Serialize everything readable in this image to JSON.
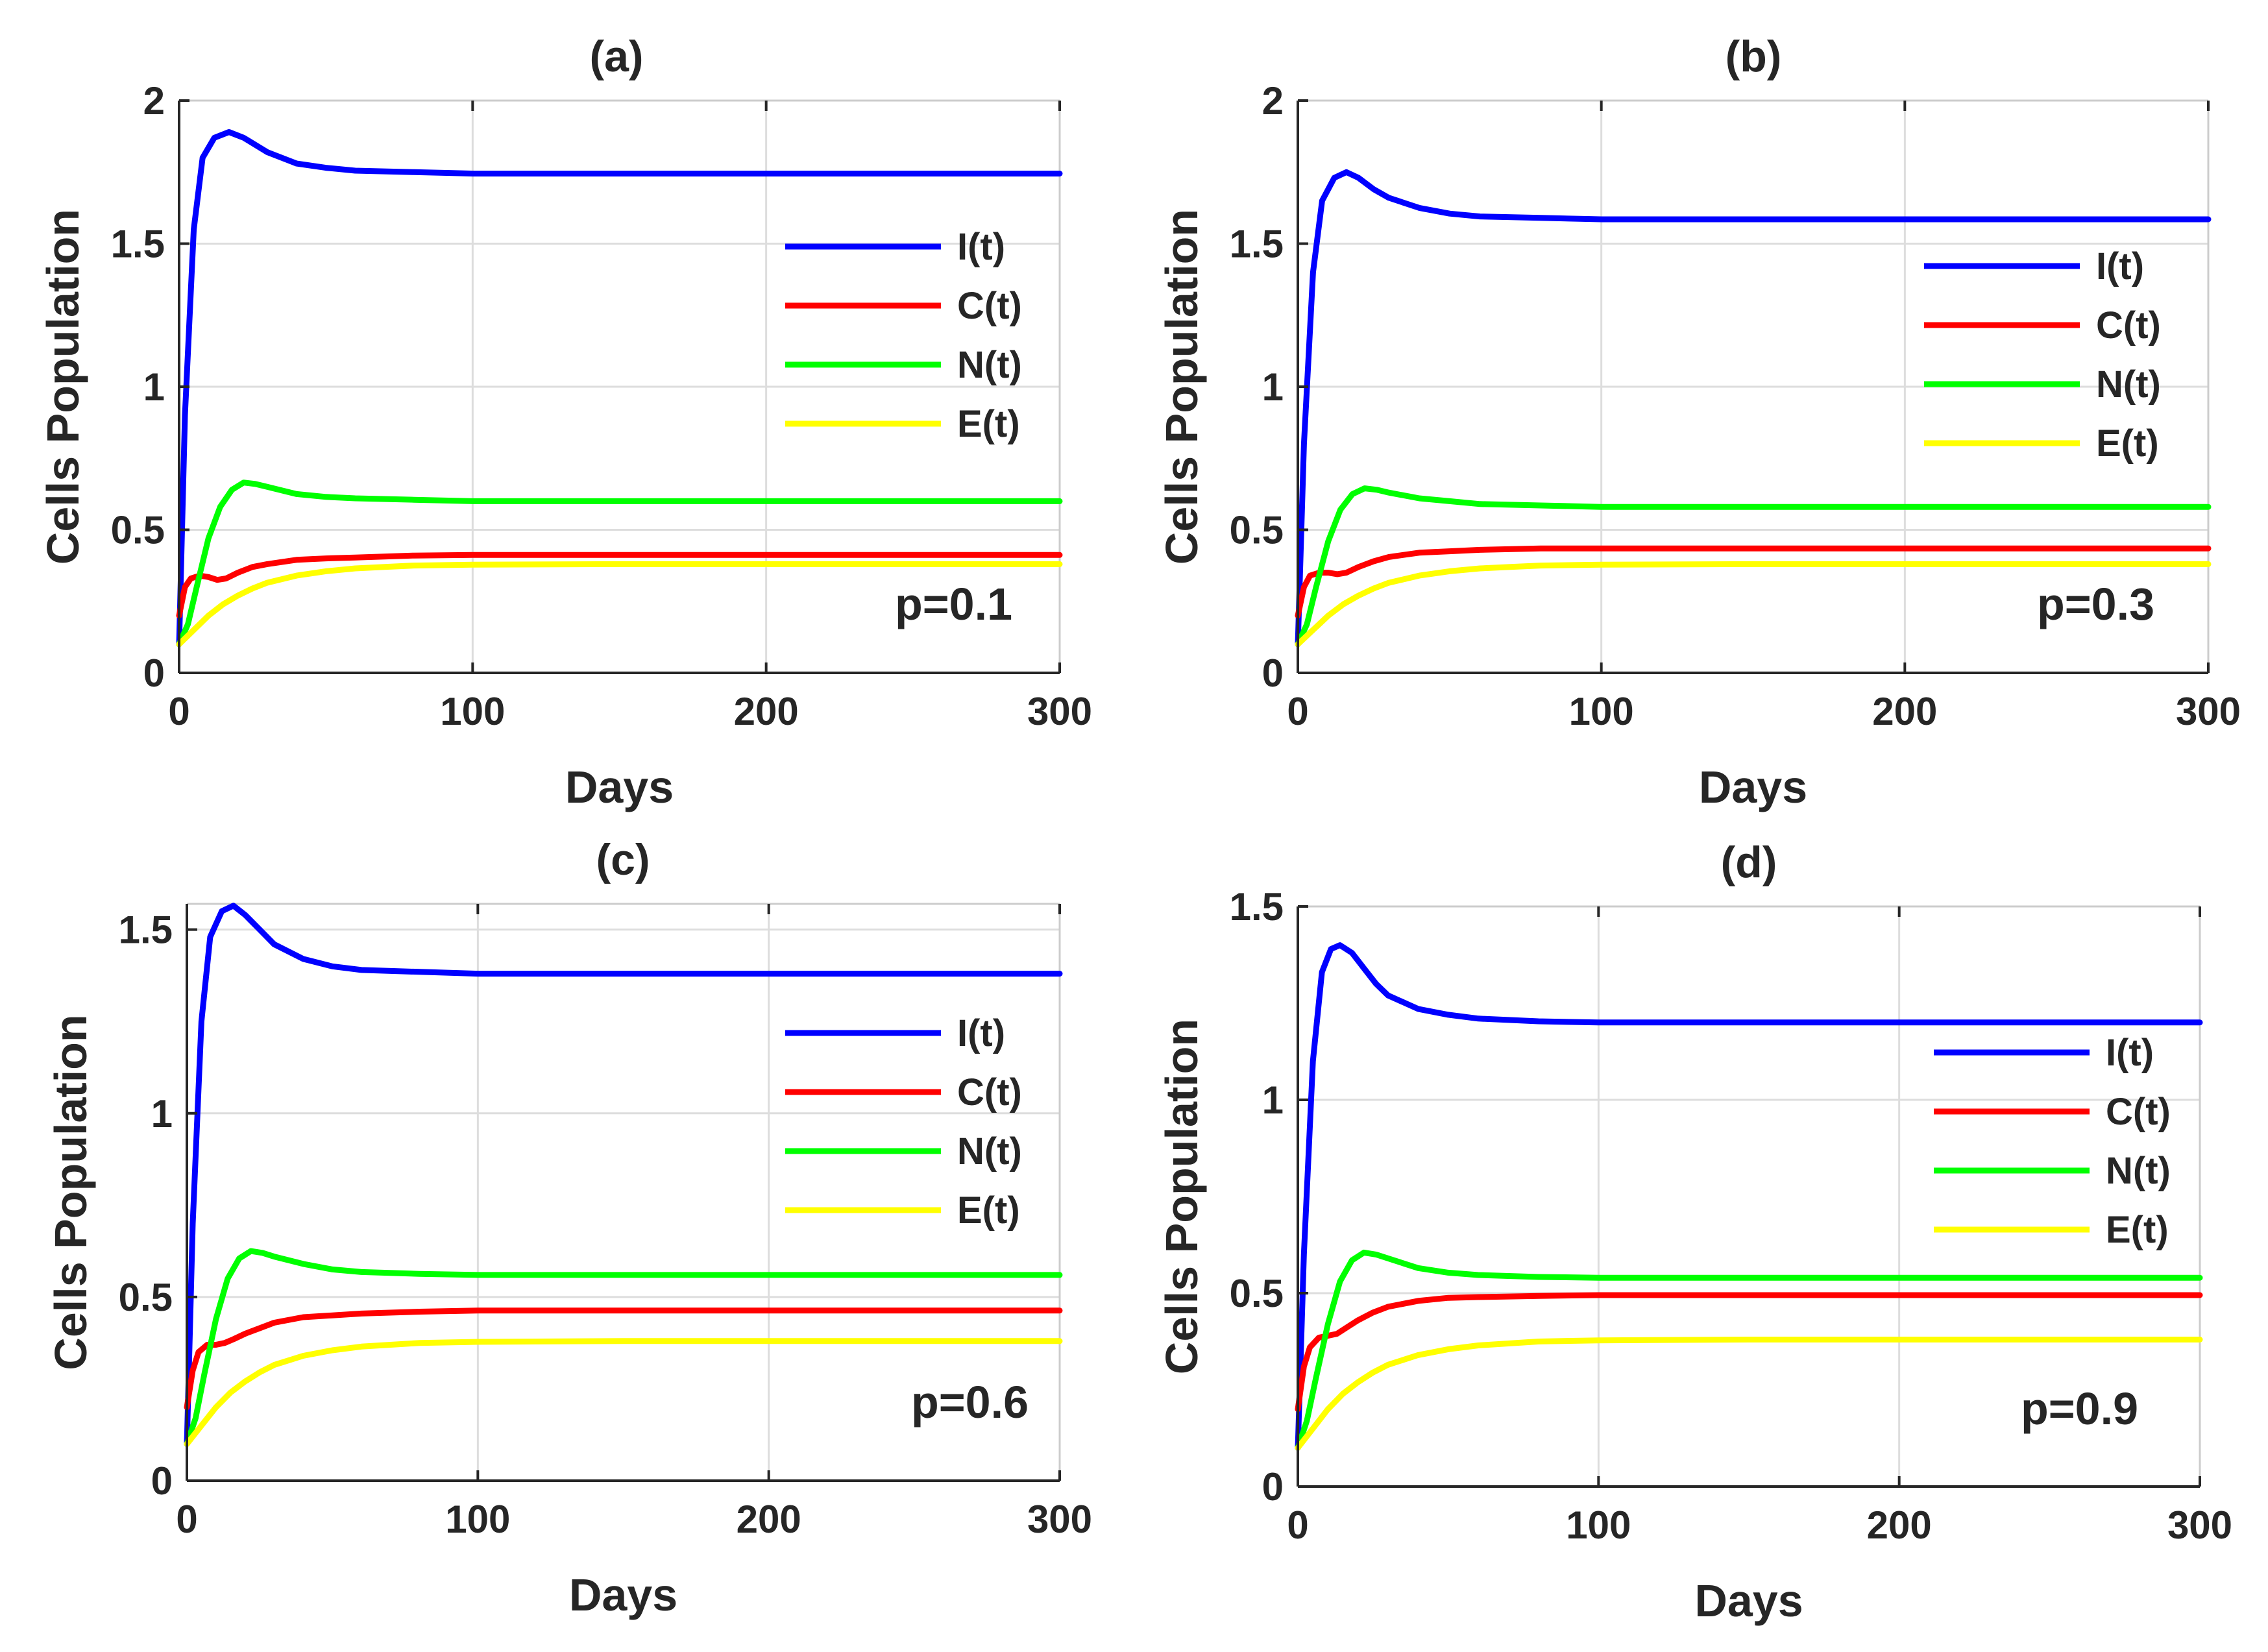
{
  "chart_data": [
    {
      "type": "line",
      "title": "(a)",
      "xlabel": "Days",
      "ylabel": "Cells Population",
      "xlim": [
        0,
        300
      ],
      "ylim": [
        0,
        2
      ],
      "xticks": [
        "0",
        "100",
        "200",
        "300"
      ],
      "yticks": [
        "0",
        "0.5",
        "1",
        "1.5",
        "2"
      ],
      "annotation": "p=0.1",
      "grid": true,
      "legend_position": "upper-right",
      "series": [
        {
          "name": "I(t)",
          "color": "#0000ff",
          "x": [
            0,
            2,
            5,
            8,
            12,
            17,
            22,
            30,
            40,
            50,
            60,
            80,
            100,
            150,
            200,
            250,
            300
          ],
          "y": [
            0.1,
            0.9,
            1.55,
            1.8,
            1.87,
            1.89,
            1.87,
            1.82,
            1.78,
            1.765,
            1.755,
            1.75,
            1.745,
            1.745,
            1.745,
            1.745,
            1.745
          ]
        },
        {
          "name": "C(t)",
          "color": "#ff0000",
          "x": [
            0,
            2,
            4,
            7,
            10,
            13,
            16,
            20,
            25,
            30,
            40,
            50,
            60,
            80,
            100,
            150,
            200,
            250,
            300
          ],
          "y": [
            0.2,
            0.3,
            0.33,
            0.34,
            0.335,
            0.325,
            0.33,
            0.35,
            0.37,
            0.38,
            0.395,
            0.4,
            0.403,
            0.41,
            0.412,
            0.412,
            0.412,
            0.412,
            0.412
          ]
        },
        {
          "name": "N(t)",
          "color": "#00ff00",
          "x": [
            0,
            3,
            6,
            10,
            14,
            18,
            22,
            26,
            30,
            40,
            50,
            60,
            80,
            100,
            150,
            200,
            250,
            300
          ],
          "y": [
            0.1,
            0.17,
            0.3,
            0.47,
            0.58,
            0.64,
            0.665,
            0.66,
            0.65,
            0.625,
            0.615,
            0.61,
            0.605,
            0.6,
            0.6,
            0.6,
            0.6,
            0.6
          ]
        },
        {
          "name": "E(t)",
          "color": "#ffff00",
          "x": [
            0,
            5,
            10,
            15,
            20,
            25,
            30,
            40,
            50,
            60,
            70,
            80,
            100,
            150,
            200,
            250,
            300
          ],
          "y": [
            0.1,
            0.15,
            0.2,
            0.24,
            0.27,
            0.295,
            0.315,
            0.34,
            0.355,
            0.365,
            0.37,
            0.375,
            0.378,
            0.38,
            0.38,
            0.38,
            0.38
          ]
        }
      ]
    },
    {
      "type": "line",
      "title": "(b)",
      "xlabel": "Days",
      "ylabel": "Cells Population",
      "xlim": [
        0,
        300
      ],
      "ylim": [
        0,
        2
      ],
      "xticks": [
        "0",
        "100",
        "200",
        "300"
      ],
      "yticks": [
        "0",
        "0.5",
        "1",
        "1.5",
        "2"
      ],
      "annotation": "p=0.3",
      "grid": true,
      "legend_position": "upper-right",
      "series": [
        {
          "name": "I(t)",
          "color": "#0000ff",
          "x": [
            0,
            2,
            5,
            8,
            12,
            16,
            20,
            25,
            30,
            40,
            50,
            60,
            80,
            100,
            150,
            200,
            250,
            300
          ],
          "y": [
            0.1,
            0.8,
            1.4,
            1.65,
            1.73,
            1.75,
            1.73,
            1.69,
            1.66,
            1.625,
            1.605,
            1.595,
            1.59,
            1.585,
            1.585,
            1.585,
            1.585,
            1.585
          ]
        },
        {
          "name": "C(t)",
          "color": "#ff0000",
          "x": [
            0,
            2,
            4,
            7,
            10,
            13,
            16,
            20,
            25,
            30,
            40,
            50,
            60,
            80,
            100,
            150,
            200,
            250,
            300
          ],
          "y": [
            0.2,
            0.3,
            0.34,
            0.35,
            0.35,
            0.345,
            0.35,
            0.37,
            0.39,
            0.405,
            0.42,
            0.425,
            0.43,
            0.435,
            0.435,
            0.435,
            0.435,
            0.435,
            0.435
          ]
        },
        {
          "name": "N(t)",
          "color": "#00ff00",
          "x": [
            0,
            3,
            6,
            10,
            14,
            18,
            22,
            26,
            30,
            40,
            50,
            60,
            80,
            100,
            150,
            200,
            250,
            300
          ],
          "y": [
            0.1,
            0.17,
            0.3,
            0.46,
            0.57,
            0.625,
            0.645,
            0.64,
            0.63,
            0.61,
            0.6,
            0.59,
            0.585,
            0.58,
            0.58,
            0.58,
            0.58,
            0.58
          ]
        },
        {
          "name": "E(t)",
          "color": "#ffff00",
          "x": [
            0,
            5,
            10,
            15,
            20,
            25,
            30,
            40,
            50,
            60,
            70,
            80,
            100,
            150,
            200,
            250,
            300
          ],
          "y": [
            0.1,
            0.15,
            0.2,
            0.24,
            0.27,
            0.295,
            0.315,
            0.34,
            0.355,
            0.365,
            0.37,
            0.375,
            0.378,
            0.38,
            0.38,
            0.38,
            0.38
          ]
        }
      ]
    },
    {
      "type": "line",
      "title": "(c)",
      "xlabel": "Days",
      "ylabel": "Cells Population",
      "xlim": [
        0,
        300
      ],
      "ylim": [
        0,
        1.57
      ],
      "xticks": [
        "0",
        "100",
        "200",
        "300"
      ],
      "yticks": [
        "0",
        "0.5",
        "1",
        "1.5"
      ],
      "annotation": "p=0.6",
      "grid": true,
      "legend_position": "upper-right",
      "series": [
        {
          "name": "I(t)",
          "color": "#0000ff",
          "x": [
            0,
            2,
            5,
            8,
            12,
            16,
            20,
            25,
            30,
            40,
            50,
            60,
            80,
            100,
            150,
            200,
            250,
            300
          ],
          "y": [
            0.1,
            0.7,
            1.25,
            1.48,
            1.55,
            1.565,
            1.54,
            1.5,
            1.46,
            1.42,
            1.4,
            1.39,
            1.385,
            1.38,
            1.38,
            1.38,
            1.38,
            1.38
          ]
        },
        {
          "name": "C(t)",
          "color": "#ff0000",
          "x": [
            0,
            2,
            4,
            7,
            10,
            13,
            16,
            20,
            25,
            30,
            40,
            50,
            60,
            80,
            100,
            150,
            200,
            250,
            300
          ],
          "y": [
            0.2,
            0.3,
            0.35,
            0.37,
            0.37,
            0.375,
            0.385,
            0.4,
            0.415,
            0.43,
            0.445,
            0.45,
            0.455,
            0.46,
            0.463,
            0.463,
            0.463,
            0.463,
            0.463
          ]
        },
        {
          "name": "N(t)",
          "color": "#00ff00",
          "x": [
            0,
            3,
            6,
            10,
            14,
            18,
            22,
            26,
            30,
            40,
            50,
            60,
            80,
            100,
            150,
            200,
            250,
            300
          ],
          "y": [
            0.1,
            0.17,
            0.29,
            0.44,
            0.55,
            0.605,
            0.625,
            0.62,
            0.61,
            0.59,
            0.575,
            0.568,
            0.563,
            0.56,
            0.56,
            0.56,
            0.56,
            0.56
          ]
        },
        {
          "name": "E(t)",
          "color": "#ffff00",
          "x": [
            0,
            5,
            10,
            15,
            20,
            25,
            30,
            40,
            50,
            60,
            70,
            80,
            100,
            150,
            200,
            250,
            300
          ],
          "y": [
            0.1,
            0.15,
            0.2,
            0.24,
            0.27,
            0.295,
            0.315,
            0.34,
            0.355,
            0.365,
            0.37,
            0.375,
            0.378,
            0.38,
            0.38,
            0.38,
            0.38
          ]
        }
      ]
    },
    {
      "type": "line",
      "title": "(d)",
      "xlabel": "Days",
      "ylabel": "Cells Population",
      "xlim": [
        0,
        300
      ],
      "ylim": [
        0,
        1.5
      ],
      "xticks": [
        "0",
        "100",
        "200",
        "300"
      ],
      "yticks": [
        "0",
        "0.5",
        "1",
        "1.5"
      ],
      "annotation": "p=0.9",
      "grid": true,
      "legend_position": "upper-right",
      "series": [
        {
          "name": "I(t)",
          "color": "#0000ff",
          "x": [
            0,
            2,
            5,
            8,
            11,
            14,
            18,
            22,
            26,
            30,
            40,
            50,
            60,
            80,
            100,
            150,
            200,
            250,
            300
          ],
          "y": [
            0.1,
            0.6,
            1.1,
            1.33,
            1.39,
            1.4,
            1.38,
            1.34,
            1.3,
            1.27,
            1.235,
            1.22,
            1.21,
            1.203,
            1.2,
            1.2,
            1.2,
            1.2,
            1.2
          ]
        },
        {
          "name": "C(t)",
          "color": "#ff0000",
          "x": [
            0,
            2,
            4,
            7,
            10,
            13,
            16,
            20,
            25,
            30,
            40,
            50,
            60,
            80,
            100,
            150,
            200,
            250,
            300
          ],
          "y": [
            0.2,
            0.31,
            0.36,
            0.385,
            0.39,
            0.395,
            0.41,
            0.43,
            0.45,
            0.465,
            0.48,
            0.488,
            0.49,
            0.493,
            0.495,
            0.495,
            0.495,
            0.495,
            0.495
          ]
        },
        {
          "name": "N(t)",
          "color": "#00ff00",
          "x": [
            0,
            3,
            6,
            10,
            14,
            18,
            22,
            26,
            30,
            40,
            50,
            60,
            80,
            100,
            150,
            200,
            250,
            300
          ],
          "y": [
            0.1,
            0.17,
            0.28,
            0.42,
            0.53,
            0.585,
            0.605,
            0.6,
            0.59,
            0.565,
            0.553,
            0.547,
            0.542,
            0.54,
            0.54,
            0.54,
            0.54,
            0.54
          ]
        },
        {
          "name": "E(t)",
          "color": "#ffff00",
          "x": [
            0,
            5,
            10,
            15,
            20,
            25,
            30,
            40,
            50,
            60,
            70,
            80,
            100,
            150,
            200,
            250,
            300
          ],
          "y": [
            0.1,
            0.15,
            0.2,
            0.24,
            0.27,
            0.295,
            0.315,
            0.34,
            0.355,
            0.365,
            0.37,
            0.375,
            0.378,
            0.38,
            0.38,
            0.38,
            0.38
          ]
        }
      ]
    }
  ]
}
